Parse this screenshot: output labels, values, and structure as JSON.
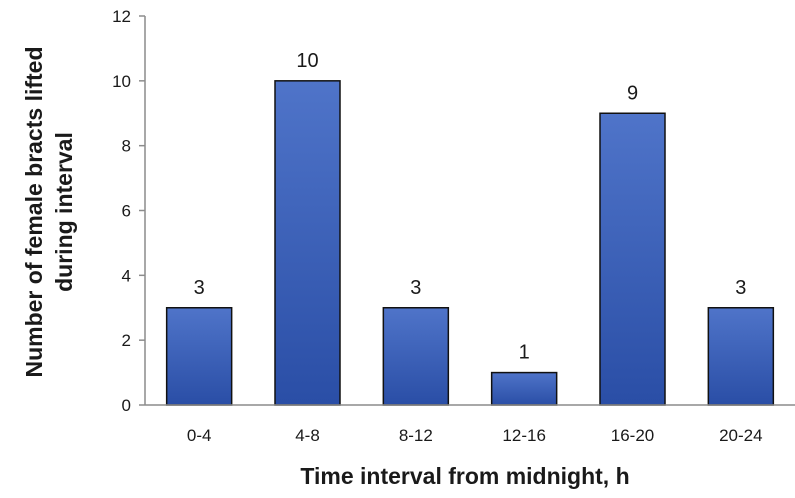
{
  "chart_data": {
    "type": "bar",
    "categories": [
      "0-4",
      "4-8",
      "8-12",
      "12-16",
      "16-20",
      "20-24"
    ],
    "values": [
      3,
      10,
      3,
      1,
      9,
      3
    ],
    "data_labels": [
      "3",
      "10",
      "3",
      "1",
      "9",
      "3"
    ],
    "xlabel": "Time interval from midnight, h",
    "ylabel_lines": [
      "Number of female bracts lifted",
      "during interval"
    ],
    "ylim": [
      0,
      12
    ],
    "yticks": [
      0,
      2,
      4,
      6,
      8,
      10,
      12
    ],
    "ytick_labels": [
      "0",
      "2",
      "4",
      "6",
      "8",
      "10",
      "12"
    ],
    "grid": false,
    "legend": "none",
    "colors": {
      "bar_top": "#4f74c9",
      "bar_bottom": "#2a4ea6",
      "bar_edge": "#111111",
      "axis": "#8c8c8c"
    }
  }
}
